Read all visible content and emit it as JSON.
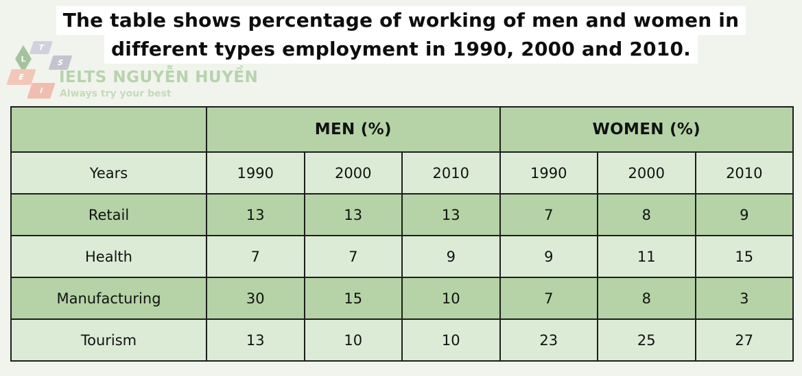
{
  "title": {
    "line1": "The table shows percentage of working of men and women in",
    "line2": "different types employment in 1990, 2000 and 2010."
  },
  "logo": {
    "brand": "IELTS NGUYỄN HUYỀN",
    "tagline": "Always try your best",
    "badges": [
      "L",
      "T",
      "S",
      "E",
      "I"
    ]
  },
  "chart_data": {
    "type": "table",
    "title": "The table shows percentage of working of men and women in different types employment in 1990, 2000 and 2010.",
    "group_headers": [
      "MEN (%)",
      "WOMEN (%)"
    ],
    "col_header": "Years",
    "years": [
      "1990",
      "2000",
      "2010",
      "1990",
      "2000",
      "2010"
    ],
    "rows": [
      {
        "label": "Retail",
        "values": [
          13,
          13,
          13,
          7,
          8,
          9
        ]
      },
      {
        "label": "Health",
        "values": [
          7,
          7,
          9,
          9,
          11,
          15
        ]
      },
      {
        "label": "Manufacturing",
        "values": [
          30,
          15,
          10,
          7,
          8,
          3
        ]
      },
      {
        "label": "Tourism",
        "values": [
          13,
          10,
          10,
          23,
          25,
          27
        ]
      }
    ]
  },
  "colors": {
    "page_bg": "#f0f4ed",
    "title_bg": "#ffffff",
    "title_text": "#0d0d0d",
    "table_border": "#1d1d1d",
    "row_dark_bg": "#b5d3a6",
    "row_light_bg": "#dcebd6",
    "brand_green": "#a9cb9c",
    "badge_green": "#92b789",
    "badge_lavender": "#cac8da",
    "badge_gray": "#b9b9c8",
    "badge_salmon": "#f2b7a6"
  }
}
